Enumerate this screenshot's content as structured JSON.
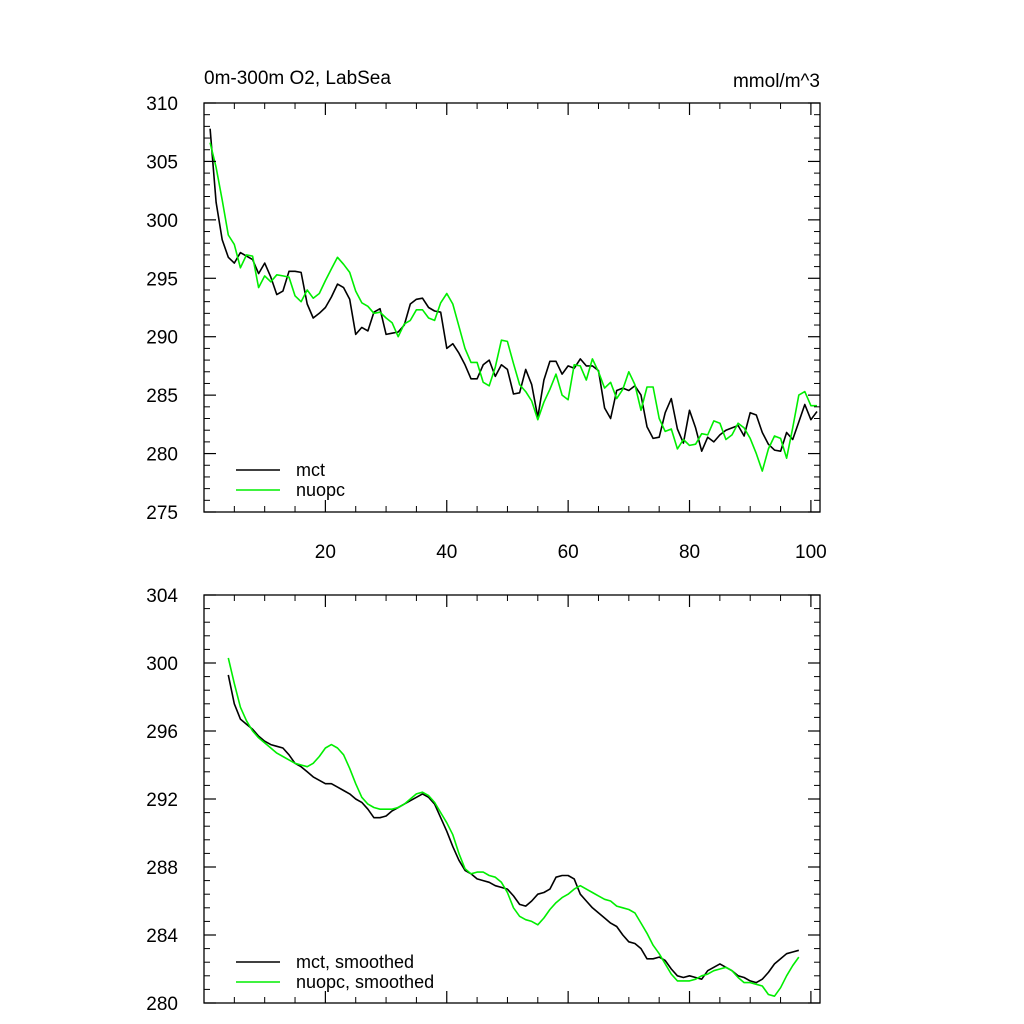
{
  "chart_data": [
    {
      "type": "line",
      "title": "0m-300m O2, LabSea",
      "units_label": "mmol/m^3",
      "xlabel": "",
      "ylabel": "",
      "xlim": [
        0,
        101.5
      ],
      "ylim": [
        275,
        310
      ],
      "xticks": [
        20,
        40,
        60,
        80,
        100
      ],
      "yticks": [
        275,
        280,
        285,
        290,
        295,
        300,
        305,
        310
      ],
      "legend_position": "bottom-left",
      "series": [
        {
          "name": "mct",
          "color": "#000000",
          "x": [
            1,
            2,
            3,
            4,
            5,
            6,
            7,
            8,
            9,
            10,
            11,
            12,
            13,
            14,
            15,
            16,
            17,
            18,
            19,
            20,
            21,
            22,
            23,
            24,
            25,
            26,
            27,
            28,
            29,
            30,
            31,
            32,
            33,
            34,
            35,
            36,
            37,
            38,
            39,
            40,
            41,
            42,
            43,
            44,
            45,
            46,
            47,
            48,
            49,
            50,
            51,
            52,
            53,
            54,
            55,
            56,
            57,
            58,
            59,
            60,
            61,
            62,
            63,
            64,
            65,
            66,
            67,
            68,
            69,
            70,
            71,
            72,
            73,
            74,
            75,
            76,
            77,
            78,
            79,
            80,
            81,
            82,
            83,
            84,
            85,
            86,
            87,
            88,
            89,
            90,
            91,
            92,
            93,
            94,
            95,
            96,
            97,
            98,
            99,
            100,
            101
          ],
          "values": [
            307.8,
            301.5,
            298.3,
            296.8,
            296.3,
            297.2,
            296.9,
            296.6,
            295.4,
            296.3,
            295.1,
            293.6,
            293.9,
            295.6,
            295.6,
            295.5,
            292.8,
            291.6,
            292.0,
            292.5,
            293.4,
            294.5,
            294.2,
            293.2,
            290.2,
            290.8,
            290.5,
            292.1,
            292.4,
            290.2,
            290.3,
            290.4,
            291.0,
            292.8,
            293.2,
            293.3,
            292.5,
            292.2,
            292.1,
            289.0,
            289.4,
            288.6,
            287.6,
            286.4,
            286.4,
            287.6,
            288.0,
            286.6,
            287.6,
            287.2,
            285.1,
            285.2,
            287.2,
            285.9,
            283.1,
            286.3,
            287.9,
            287.9,
            286.8,
            287.5,
            287.3,
            288.1,
            287.5,
            287.5,
            287.1,
            283.9,
            283.0,
            285.4,
            285.6,
            285.4,
            285.8,
            285.0,
            282.3,
            281.3,
            281.4,
            283.5,
            284.7,
            282.1,
            280.9,
            283.7,
            282.2,
            280.2,
            281.4,
            281.0,
            281.6,
            282.0,
            282.2,
            282.4,
            281.5,
            283.5,
            283.3,
            281.8,
            280.8,
            280.3,
            280.2,
            281.8,
            281.2,
            282.7,
            284.2,
            282.9,
            283.6
          ]
        },
        {
          "name": "nuopc",
          "color": "#00ee00",
          "x": [
            1,
            2,
            3,
            4,
            5,
            6,
            7,
            8,
            9,
            10,
            11,
            12,
            13,
            14,
            15,
            16,
            17,
            18,
            19,
            20,
            21,
            22,
            23,
            24,
            25,
            26,
            27,
            28,
            29,
            30,
            31,
            32,
            33,
            34,
            35,
            36,
            37,
            38,
            39,
            40,
            41,
            42,
            43,
            44,
            45,
            46,
            47,
            48,
            49,
            50,
            51,
            52,
            53,
            54,
            55,
            56,
            57,
            58,
            59,
            60,
            61,
            62,
            63,
            64,
            65,
            66,
            67,
            68,
            69,
            70,
            71,
            72,
            73,
            74,
            75,
            76,
            77,
            78,
            79,
            80,
            81,
            82,
            83,
            84,
            85,
            86,
            87,
            88,
            89,
            90,
            91,
            92,
            93,
            94,
            95,
            96,
            97,
            98,
            99,
            100,
            101
          ],
          "values": [
            306.6,
            304.5,
            301.7,
            298.7,
            297.9,
            295.9,
            297.0,
            296.9,
            294.2,
            295.2,
            294.7,
            295.3,
            295.2,
            295.1,
            293.5,
            293.0,
            294.0,
            293.3,
            293.7,
            294.8,
            295.8,
            296.8,
            296.2,
            295.5,
            293.9,
            292.9,
            292.6,
            292.0,
            292.1,
            291.6,
            291.2,
            290.0,
            291.1,
            291.4,
            292.3,
            292.3,
            291.6,
            291.4,
            292.9,
            293.7,
            292.8,
            290.9,
            289.0,
            287.8,
            287.8,
            286.1,
            285.8,
            287.4,
            289.7,
            289.6,
            287.7,
            285.9,
            285.3,
            284.5,
            282.9,
            284.4,
            285.5,
            286.8,
            285.0,
            284.6,
            287.6,
            287.5,
            286.3,
            288.1,
            287.0,
            285.6,
            286.1,
            284.7,
            285.5,
            287.0,
            285.9,
            283.7,
            285.7,
            285.7,
            283.0,
            281.9,
            282.1,
            280.4,
            281.2,
            280.7,
            280.8,
            281.7,
            281.6,
            282.8,
            282.6,
            281.2,
            281.6,
            282.6,
            282.2,
            281.3,
            280.0,
            278.5,
            280.4,
            281.5,
            281.3,
            279.6,
            282.2,
            285.0,
            285.3,
            284.1,
            284.1
          ]
        }
      ]
    },
    {
      "type": "line",
      "title": "",
      "xlabel": "",
      "ylabel": "",
      "xlim": [
        0,
        101.5
      ],
      "ylim": [
        280,
        304
      ],
      "xticks": [
        20,
        40,
        60,
        80,
        100
      ],
      "yticks": [
        280,
        284,
        288,
        292,
        296,
        300,
        304
      ],
      "legend_position": "bottom-left",
      "series": [
        {
          "name": "mct, smoothed",
          "color": "#000000",
          "x": [
            4,
            5,
            6,
            7,
            8,
            9,
            10,
            11,
            12,
            13,
            14,
            15,
            16,
            17,
            18,
            19,
            20,
            21,
            22,
            23,
            24,
            25,
            26,
            27,
            28,
            29,
            30,
            31,
            32,
            33,
            34,
            35,
            36,
            37,
            38,
            39,
            40,
            41,
            42,
            43,
            44,
            45,
            46,
            47,
            48,
            49,
            50,
            51,
            52,
            53,
            54,
            55,
            56,
            57,
            58,
            59,
            60,
            61,
            62,
            63,
            64,
            65,
            66,
            67,
            68,
            69,
            70,
            71,
            72,
            73,
            74,
            75,
            76,
            77,
            78,
            79,
            80,
            81,
            82,
            83,
            84,
            85,
            86,
            87,
            88,
            89,
            90,
            91,
            92,
            93,
            94,
            95,
            96,
            97,
            98
          ],
          "values": [
            299.3,
            297.6,
            296.7,
            296.4,
            296.1,
            295.7,
            295.4,
            295.2,
            295.1,
            295.0,
            294.6,
            294.1,
            293.9,
            293.6,
            293.3,
            293.1,
            292.9,
            292.9,
            292.7,
            292.5,
            292.3,
            292.0,
            291.8,
            291.4,
            290.9,
            290.9,
            291.0,
            291.3,
            291.5,
            291.7,
            291.9,
            292.1,
            292.3,
            292.1,
            291.7,
            290.9,
            290.1,
            289.2,
            288.4,
            287.8,
            287.6,
            287.3,
            287.2,
            287.1,
            286.9,
            286.8,
            286.7,
            286.3,
            285.8,
            285.7,
            286.0,
            286.4,
            286.5,
            286.7,
            287.4,
            287.5,
            287.5,
            287.3,
            286.4,
            286.0,
            285.6,
            285.3,
            285.0,
            284.7,
            284.5,
            284.0,
            283.6,
            283.5,
            283.2,
            282.6,
            282.6,
            282.7,
            282.5,
            282.0,
            281.6,
            281.5,
            281.6,
            281.5,
            281.4,
            281.9,
            282.1,
            282.3,
            282.1,
            281.9,
            281.6,
            281.5,
            281.3,
            281.2,
            281.4,
            281.8,
            282.3,
            282.6,
            282.9,
            283.0,
            283.1
          ]
        },
        {
          "name": "nuopc, smoothed",
          "color": "#00ee00",
          "x": [
            4,
            5,
            6,
            7,
            8,
            9,
            10,
            11,
            12,
            13,
            14,
            15,
            16,
            17,
            18,
            19,
            20,
            21,
            22,
            23,
            24,
            25,
            26,
            27,
            28,
            29,
            30,
            31,
            32,
            33,
            34,
            35,
            36,
            37,
            38,
            39,
            40,
            41,
            42,
            43,
            44,
            45,
            46,
            47,
            48,
            49,
            50,
            51,
            52,
            53,
            54,
            55,
            56,
            57,
            58,
            59,
            60,
            61,
            62,
            63,
            64,
            65,
            66,
            67,
            68,
            69,
            70,
            71,
            72,
            73,
            74,
            75,
            76,
            77,
            78,
            79,
            80,
            81,
            82,
            83,
            84,
            85,
            86,
            87,
            88,
            89,
            90,
            91,
            92,
            93,
            94,
            95,
            96,
            97,
            98
          ],
          "values": [
            300.3,
            298.8,
            297.4,
            296.6,
            296.0,
            295.6,
            295.3,
            295.0,
            294.7,
            294.5,
            294.3,
            294.1,
            294.0,
            293.9,
            294.1,
            294.5,
            295.0,
            295.2,
            295.0,
            294.6,
            293.8,
            292.9,
            292.1,
            291.7,
            291.5,
            291.4,
            291.4,
            291.4,
            291.5,
            291.7,
            292.0,
            292.3,
            292.4,
            292.2,
            291.8,
            291.2,
            290.6,
            289.9,
            288.8,
            287.9,
            287.6,
            287.7,
            287.7,
            287.5,
            287.4,
            287.1,
            286.5,
            285.6,
            285.1,
            284.9,
            284.8,
            284.6,
            285.0,
            285.5,
            285.9,
            286.2,
            286.4,
            286.7,
            286.9,
            286.7,
            286.5,
            286.3,
            286.1,
            286.0,
            285.7,
            285.6,
            285.5,
            285.3,
            284.7,
            284.1,
            283.4,
            282.9,
            282.3,
            281.7,
            281.3,
            281.3,
            281.3,
            281.4,
            281.6,
            281.7,
            281.9,
            282.0,
            282.1,
            281.9,
            281.5,
            281.2,
            281.2,
            281.1,
            281.0,
            280.5,
            280.4,
            280.9,
            281.6,
            282.2,
            282.7
          ]
        }
      ]
    }
  ]
}
